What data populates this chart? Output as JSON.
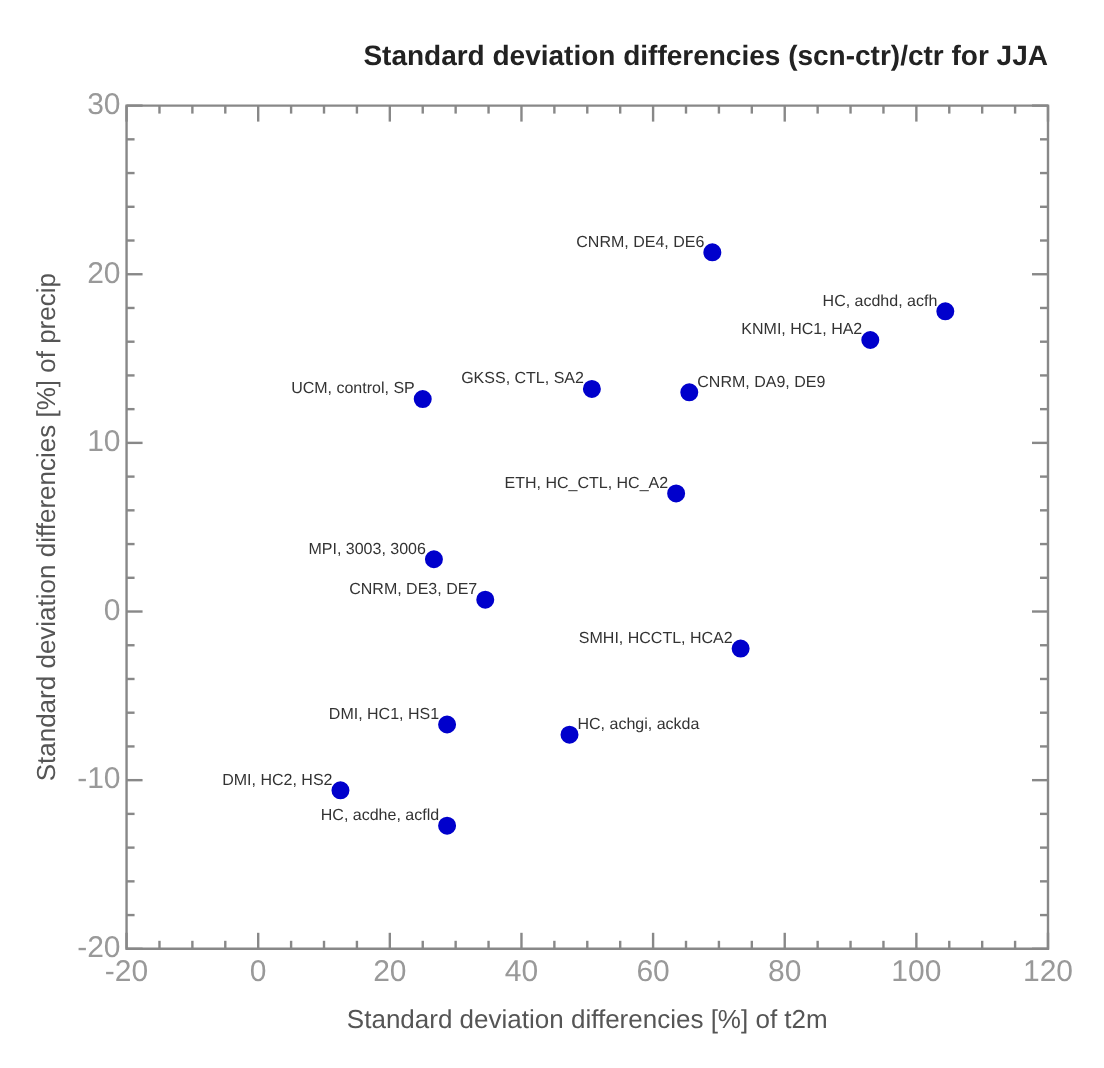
{
  "chart_data": {
    "type": "scatter",
    "title": "Standard deviation differencies (scn-ctr)/ctr for JJA",
    "xlabel": "Standard deviation differencies [%] of t2m",
    "ylabel": "Standard deviation differencies [%] of precip",
    "x": [
      69,
      104.4,
      93,
      50.7,
      65.5,
      25,
      63.5,
      26.7,
      34.5,
      73.3,
      28.7,
      47.3,
      12.5,
      28.7
    ],
    "series": [
      {
        "color": "#0000cc",
        "values": [
          21.3,
          17.8,
          16.1,
          13.2,
          13.0,
          12.6,
          7.0,
          3.1,
          0.7,
          -2.2,
          -6.7,
          -7.3,
          -10.6,
          -12.7
        ]
      }
    ],
    "annotations": [
      {
        "text": "CNRM, DE4, DE6",
        "x": 69,
        "y": 21.3
      },
      {
        "text": "HC, acdhd, acfh",
        "x": 104.4,
        "y": 17.8
      },
      {
        "text": "KNMI, HC1, HA2",
        "x": 93,
        "y": 16.1
      },
      {
        "text": "GKSS, CTL, SA2",
        "x": 50.7,
        "y": 13.2
      },
      {
        "text": "CNRM, DA9, DE9",
        "x": 65.5,
        "y": 13.0
      },
      {
        "text": "UCM, control, SP",
        "x": 25,
        "y": 12.6
      },
      {
        "text": "ETH, HC_CTL, HC_A2",
        "x": 63.5,
        "y": 7.0
      },
      {
        "text": "MPI, 3003, 3006",
        "x": 26.7,
        "y": 3.1
      },
      {
        "text": "CNRM, DE3, DE7",
        "x": 34.5,
        "y": 0.7
      },
      {
        "text": "SMHI, HCCTL, HCA2",
        "x": 73.3,
        "y": -2.2
      },
      {
        "text": "DMI, HC1, HS1",
        "x": 28.7,
        "y": -6.7
      },
      {
        "text": "HC, achgi, ackda",
        "x": 47.3,
        "y": -7.3
      },
      {
        "text": "DMI, HC2, HS2",
        "x": 12.5,
        "y": -10.6
      },
      {
        "text": "HC, acdhe, acfld",
        "x": 28.7,
        "y": -12.7
      }
    ],
    "xlim": [
      -20,
      120
    ],
    "xticks": [
      -20,
      0,
      20,
      40,
      60,
      80,
      100,
      120
    ],
    "ylim": [
      -20,
      30
    ],
    "yticks": [
      -20,
      -10,
      0,
      10,
      20,
      30
    ],
    "marker": "circle",
    "grid": false,
    "legend": false
  }
}
